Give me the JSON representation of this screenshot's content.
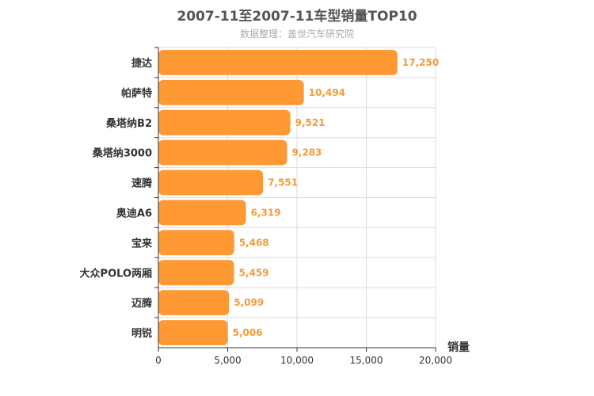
{
  "header": {
    "title": "2007-11至2007-11车型销量TOP10",
    "subtitle": "数据整理：盖世汽车研究院"
  },
  "colors": {
    "bar": "#ff9933",
    "label": "#f49b36",
    "grid": "#dddddd",
    "axis": "#333333"
  },
  "chart_data": {
    "type": "bar",
    "orientation": "horizontal",
    "title": "2007-11至2007-11车型销量TOP10",
    "subtitle": "数据整理：盖世汽车研究院",
    "categories": [
      "捷达",
      "帕萨特",
      "桑塔纳B2",
      "桑塔纳3000",
      "速腾",
      "奥迪A6",
      "宝来",
      "大众POLO两厢",
      "迈腾",
      "明锐"
    ],
    "values": [
      17250,
      10494,
      9521,
      9283,
      7551,
      6319,
      5468,
      5459,
      5099,
      5006
    ],
    "value_labels": [
      "17,250",
      "10,494",
      "9,521",
      "9,283",
      "7,551",
      "6,319",
      "5,468",
      "5,459",
      "5,099",
      "5,006"
    ],
    "xlabel": "销量",
    "xlim": [
      0,
      20000
    ],
    "xticks": [
      0,
      5000,
      10000,
      15000,
      20000
    ],
    "xtick_labels": [
      "0",
      "5,000",
      "10,000",
      "15,000",
      "20,000"
    ],
    "grid": true
  }
}
